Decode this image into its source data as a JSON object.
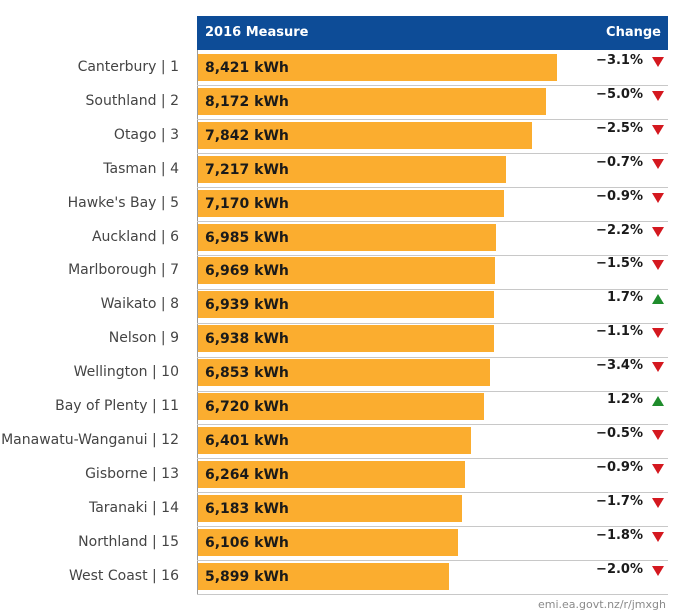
{
  "header": {
    "measure_label": "2016 Measure",
    "change_label": "Change",
    "header_color": "#0d4c97"
  },
  "source": "emi.ea.govt.nz/r/jmxgh",
  "colors": {
    "bar": "#fbad2f",
    "decrease": "#d4181f",
    "increase": "#1f8c2c"
  },
  "chart_data": {
    "type": "bar",
    "orientation": "horizontal",
    "unit": "kWh",
    "categories": [
      "Canterbury | 1",
      "Southland | 2",
      "Otago | 3",
      "Tasman | 4",
      "Hawke's Bay | 5",
      "Auckland | 6",
      "Marlborough | 7",
      "Waikato | 8",
      "Nelson | 9",
      "Wellington | 10",
      "Bay of Plenty | 11",
      "Manawatu-Wanganui | 12",
      "Gisborne | 13",
      "Taranaki | 14",
      "Northland | 15",
      "West Coast | 16"
    ],
    "values": [
      8421,
      8172,
      7842,
      7217,
      7170,
      6985,
      6969,
      6939,
      6938,
      6853,
      6720,
      6401,
      6264,
      6183,
      6106,
      5899
    ],
    "value_labels": [
      "8,421 kWh",
      "8,172 kWh",
      "7,842 kWh",
      "7,217 kWh",
      "7,170 kWh",
      "6,985 kWh",
      "6,969 kWh",
      "6,939 kWh",
      "6,938 kWh",
      "6,853 kWh",
      "6,720 kWh",
      "6,401 kWh",
      "6,264 kWh",
      "6,183 kWh",
      "6,106 kWh",
      "5,899 kWh"
    ],
    "changes": [
      "-3.1%",
      "-5.0%",
      "-2.5%",
      "-0.7%",
      "-0.9%",
      "-2.2%",
      "-1.5%",
      "1.7%",
      "-1.1%",
      "-3.4%",
      "1.2%",
      "-0.5%",
      "-0.9%",
      "-1.7%",
      "-1.8%",
      "-2.0%"
    ],
    "change_direction": [
      "down",
      "down",
      "down",
      "down",
      "down",
      "down",
      "down",
      "up",
      "down",
      "down",
      "up",
      "down",
      "down",
      "down",
      "down",
      "down"
    ],
    "xlim": [
      0,
      9500
    ],
    "grid": false
  }
}
